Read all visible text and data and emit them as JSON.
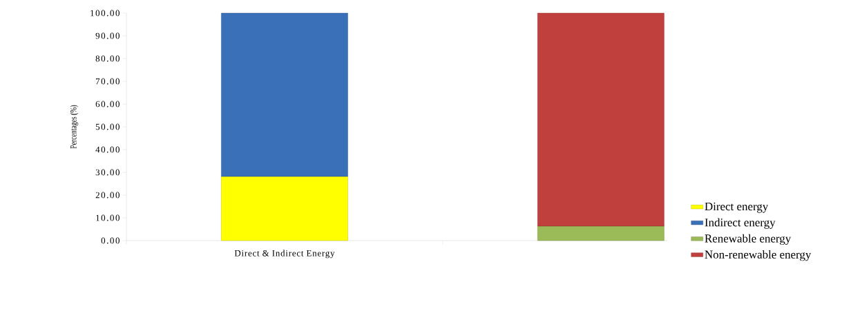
{
  "chart_data": {
    "type": "bar",
    "stacked": true,
    "ylabel": "Percentages (%)",
    "categories": [
      "Direct & Indirect Energy",
      null
    ],
    "series": [
      {
        "name": "Direct energy",
        "color": "#ffff00",
        "values": [
          28.2,
          null
        ]
      },
      {
        "name": "Indirect energy",
        "color": "#3a70b8",
        "values": [
          71.8,
          null
        ]
      },
      {
        "name": "Renewable energy",
        "color": "#9bbb59",
        "values": [
          null,
          6.4
        ]
      },
      {
        "name": "Non-renewable energy",
        "color": "#c0403e",
        "values": [
          null,
          93.6
        ]
      }
    ],
    "ylim": [
      0,
      100
    ],
    "yticks": [
      {
        "value": 0,
        "label": "0.00"
      },
      {
        "value": 10,
        "label": "10.00"
      },
      {
        "value": 20,
        "label": "20.00"
      },
      {
        "value": 30,
        "label": "30.00"
      },
      {
        "value": 40,
        "label": "40.00"
      },
      {
        "value": 50,
        "label": "50.00"
      },
      {
        "value": 60,
        "label": "60.00"
      },
      {
        "value": 70,
        "label": "70.00"
      },
      {
        "value": 80,
        "label": "80.00"
      },
      {
        "value": 90,
        "label": "90.00"
      },
      {
        "value": 100,
        "label": "100.00"
      }
    ],
    "legend": "right"
  }
}
